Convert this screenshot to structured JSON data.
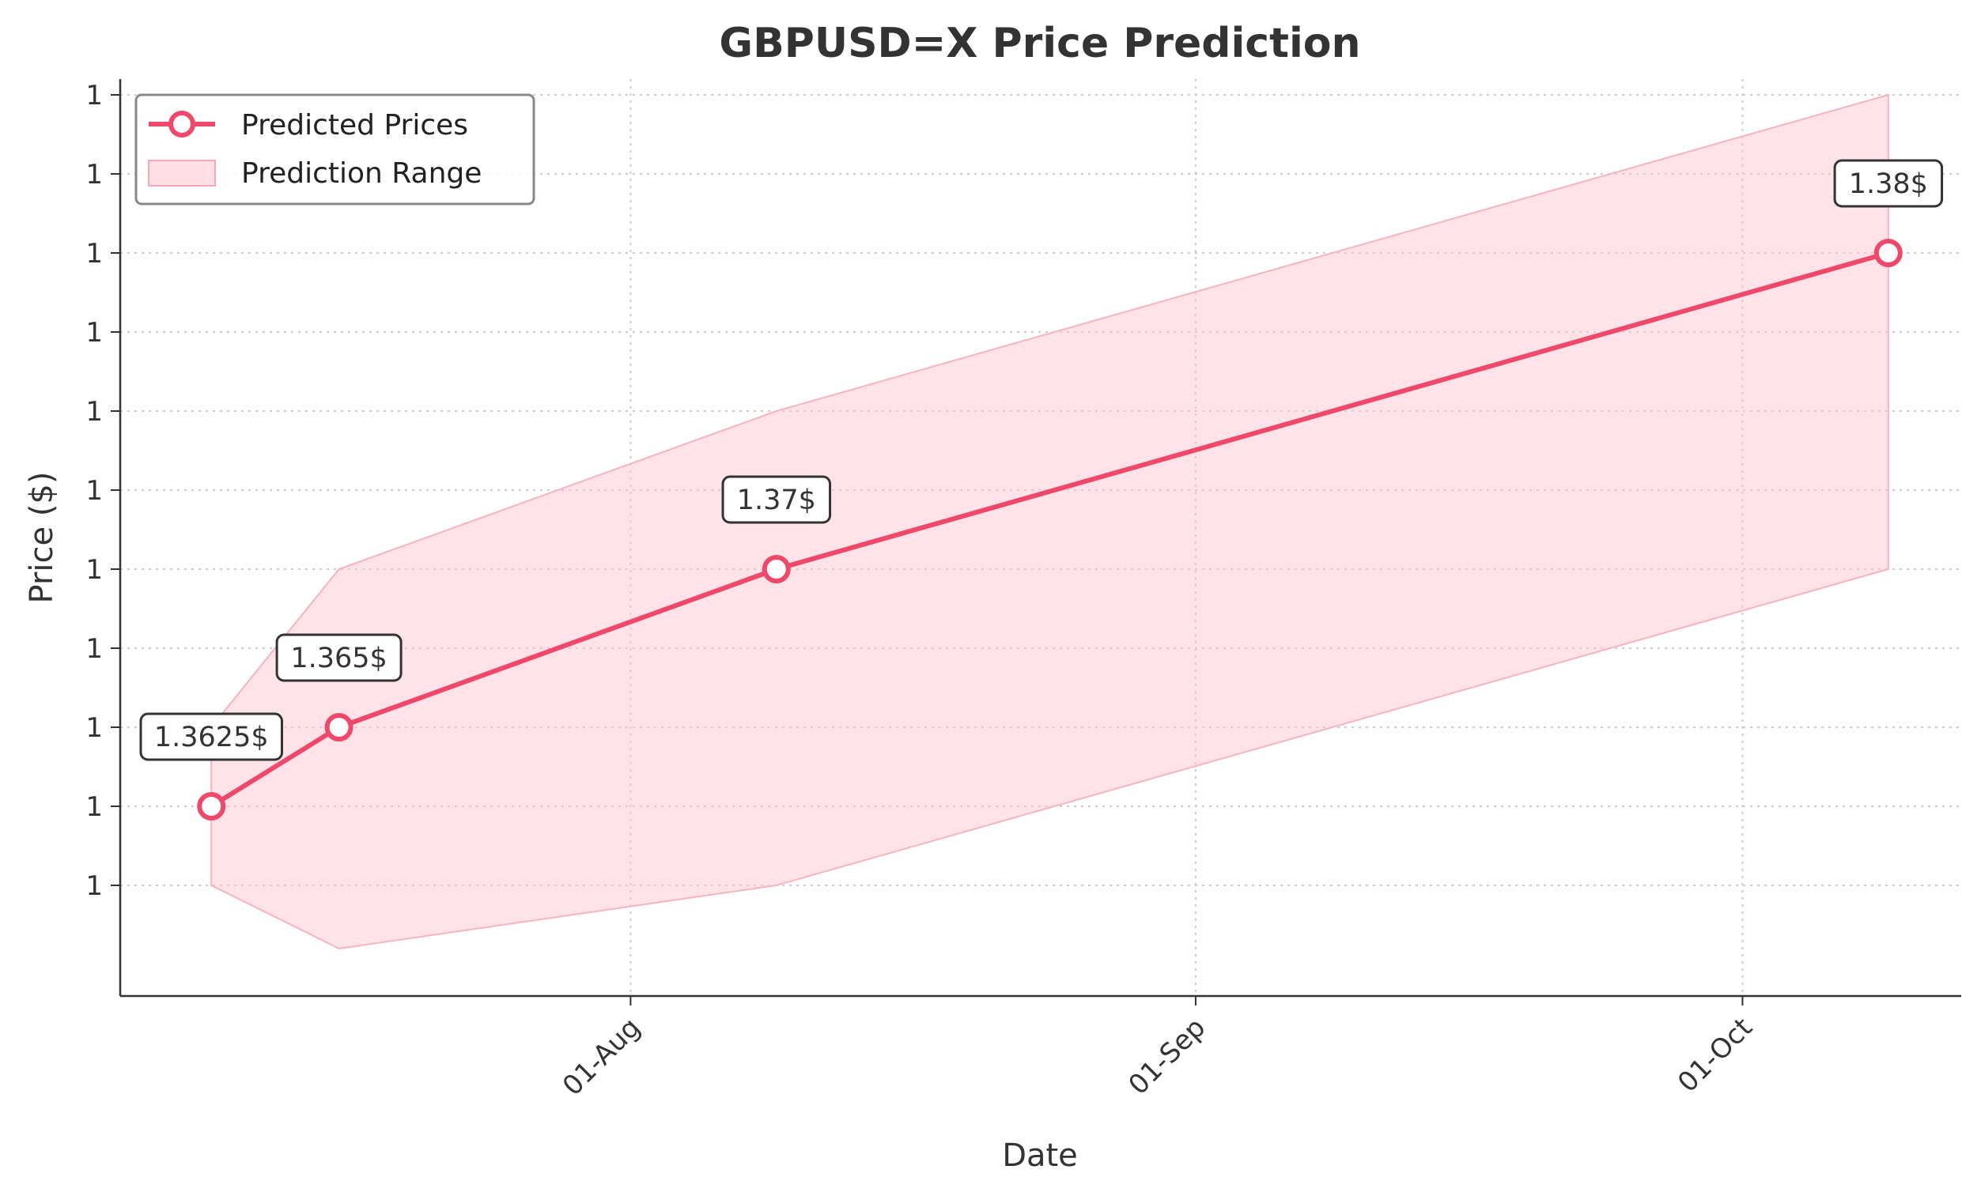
{
  "chart_data": {
    "type": "line",
    "title": "GBPUSD=X Price Prediction",
    "xlabel": "Date",
    "ylabel": "Price ($)",
    "x_ticks": [
      {
        "label": "01-Aug",
        "date": "2025-08-01"
      },
      {
        "label": "01-Sep",
        "date": "2025-09-01"
      },
      {
        "label": "01-Oct",
        "date": "2025-10-01"
      }
    ],
    "y_ticks": [
      {
        "label": "1",
        "value": 1.36
      },
      {
        "label": "1",
        "value": 1.3625
      },
      {
        "label": "1",
        "value": 1.365
      },
      {
        "label": "1",
        "value": 1.3675
      },
      {
        "label": "1",
        "value": 1.37
      },
      {
        "label": "1",
        "value": 1.3725
      },
      {
        "label": "1",
        "value": 1.375
      },
      {
        "label": "1",
        "value": 1.3775
      },
      {
        "label": "1",
        "value": 1.38
      },
      {
        "label": "1",
        "value": 1.3825
      },
      {
        "label": "1",
        "value": 1.385
      }
    ],
    "xlim": [
      "2025-07-04",
      "2025-10-13"
    ],
    "ylim": [
      1.3565,
      1.3855
    ],
    "grid": true,
    "legend_position": "top-left",
    "series": [
      {
        "name": "Predicted Prices",
        "color": "#f0486a",
        "x": [
          "2025-07-09",
          "2025-07-16",
          "2025-08-09",
          "2025-10-09"
        ],
        "y": [
          1.3625,
          1.365,
          1.37,
          1.38
        ],
        "labels": [
          "1.3625$",
          "1.365$",
          "1.37$",
          "1.38$"
        ]
      }
    ],
    "range": {
      "name": "Prediction Range",
      "color": "#ffc0cb",
      "x": [
        "2025-07-09",
        "2025-07-16",
        "2025-08-09",
        "2025-10-09"
      ],
      "lower": [
        1.36,
        1.358,
        1.36,
        1.37
      ],
      "upper": [
        1.365,
        1.37,
        1.375,
        1.385
      ]
    }
  }
}
